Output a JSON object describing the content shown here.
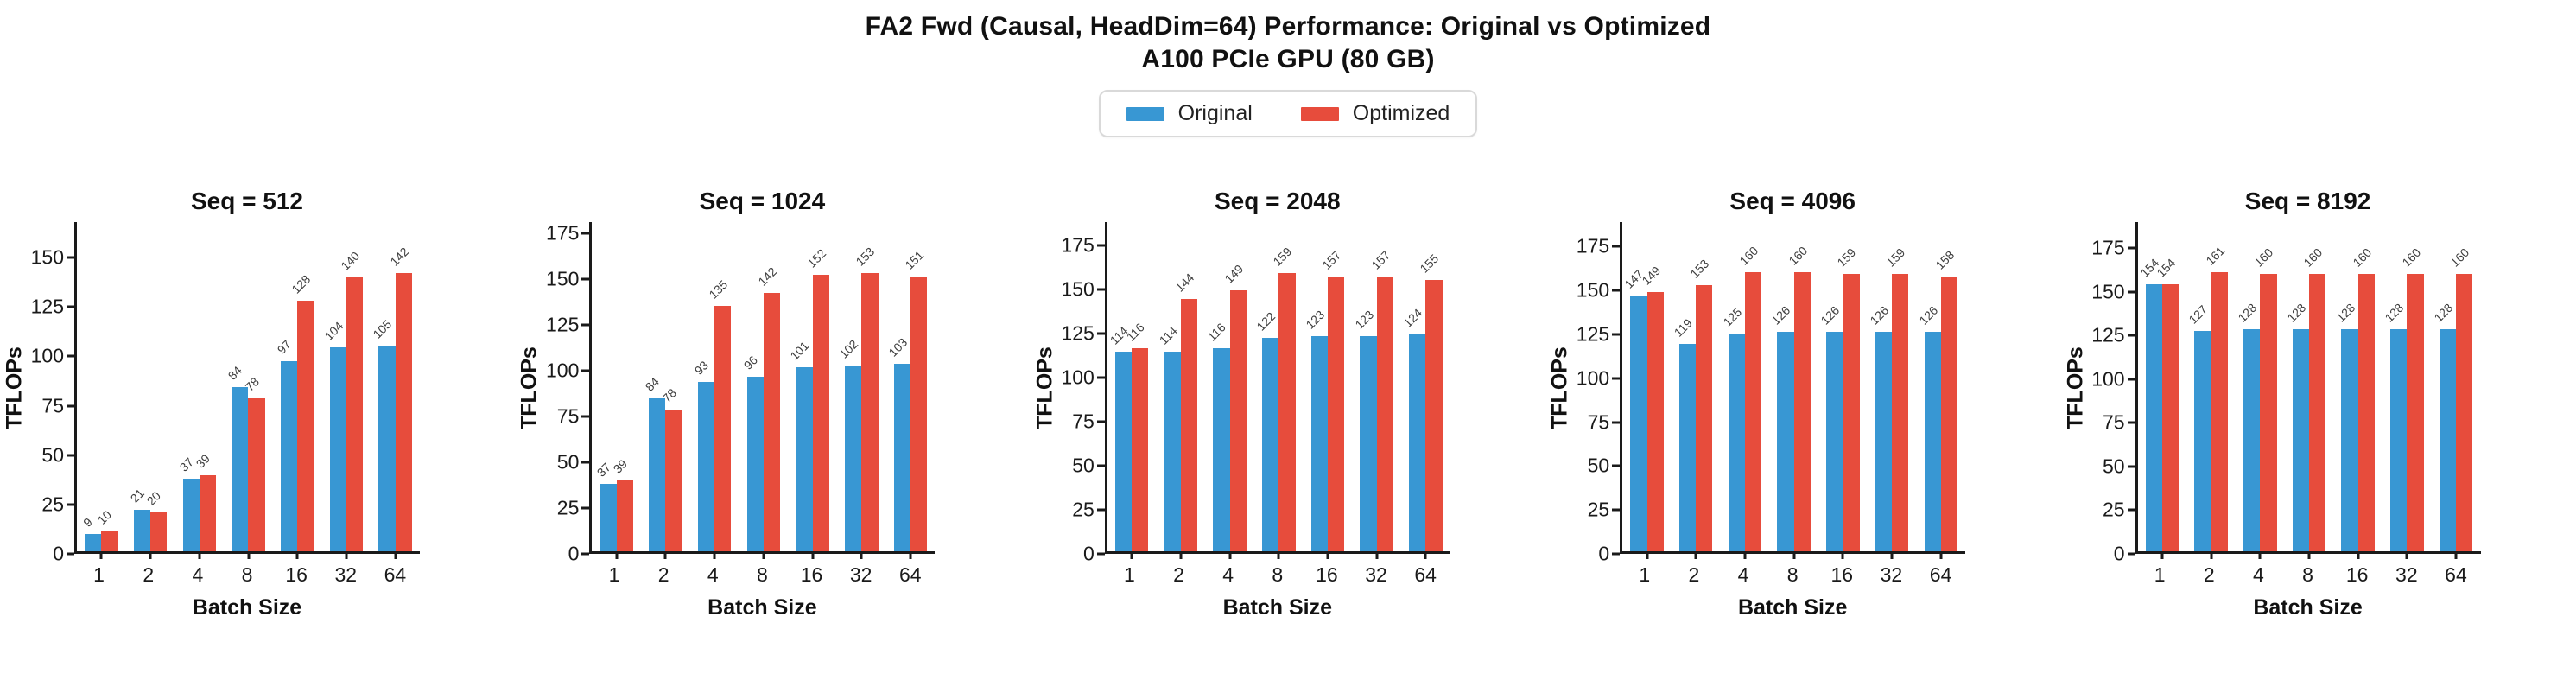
{
  "title": "FA2 Fwd (Causal, HeadDim=64) Performance: Original vs Optimized",
  "subtitle": "A100 PCIe GPU (80 GB)",
  "legend": [
    {
      "label": "Original",
      "color": "#3897d3"
    },
    {
      "label": "Optimized",
      "color": "#e74c3c"
    }
  ],
  "colors": {
    "axis": "#1a1a1a",
    "bar_label": "#3d3d3d",
    "legend_border": "#d9d9d9"
  },
  "chart_data": [
    {
      "type": "bar",
      "title": "Seq = 512",
      "xlabel": "Batch Size",
      "ylabel": "TFLOPs",
      "categories": [
        "1",
        "2",
        "4",
        "8",
        "16",
        "32",
        "64"
      ],
      "yticks": [
        0,
        25,
        50,
        75,
        100,
        125,
        150
      ],
      "ylim": [
        0,
        168
      ],
      "grid": false,
      "legend_position": "top-center",
      "series": [
        {
          "name": "Original",
          "color": "#3897d3",
          "values": [
            9,
            21,
            37,
            84,
            97,
            104,
            105
          ]
        },
        {
          "name": "Optimized",
          "color": "#e74c3c",
          "values": [
            10,
            20,
            39,
            78,
            128,
            140,
            142
          ]
        }
      ]
    },
    {
      "type": "bar",
      "title": "Seq = 1024",
      "xlabel": "Batch Size",
      "ylabel": "TFLOPs",
      "categories": [
        "1",
        "2",
        "4",
        "8",
        "16",
        "32",
        "64"
      ],
      "yticks": [
        0,
        25,
        50,
        75,
        100,
        125,
        150,
        175
      ],
      "ylim": [
        0,
        181
      ],
      "grid": false,
      "legend_position": "top-center",
      "series": [
        {
          "name": "Original",
          "color": "#3897d3",
          "values": [
            37,
            84,
            93,
            96,
            101,
            102,
            103
          ]
        },
        {
          "name": "Optimized",
          "color": "#e74c3c",
          "values": [
            39,
            78,
            135,
            142,
            152,
            153,
            151
          ]
        }
      ]
    },
    {
      "type": "bar",
      "title": "Seq = 2048",
      "xlabel": "Batch Size",
      "ylabel": "TFLOPs",
      "categories": [
        "1",
        "2",
        "4",
        "8",
        "16",
        "32",
        "64"
      ],
      "yticks": [
        0,
        25,
        50,
        75,
        100,
        125,
        150,
        175
      ],
      "ylim": [
        0,
        188
      ],
      "grid": false,
      "legend_position": "top-center",
      "series": [
        {
          "name": "Original",
          "color": "#3897d3",
          "values": [
            114,
            114,
            116,
            122,
            123,
            123,
            124
          ]
        },
        {
          "name": "Optimized",
          "color": "#e74c3c",
          "values": [
            116,
            144,
            149,
            159,
            157,
            157,
            155
          ]
        }
      ]
    },
    {
      "type": "bar",
      "title": "Seq = 4096",
      "xlabel": "Batch Size",
      "ylabel": "TFLOPs",
      "categories": [
        "1",
        "2",
        "4",
        "8",
        "16",
        "32",
        "64"
      ],
      "yticks": [
        0,
        25,
        50,
        75,
        100,
        125,
        150,
        175
      ],
      "ylim": [
        0,
        189
      ],
      "grid": false,
      "legend_position": "top-center",
      "series": [
        {
          "name": "Original",
          "color": "#3897d3",
          "values": [
            147,
            119,
            125,
            126,
            126,
            126,
            126
          ]
        },
        {
          "name": "Optimized",
          "color": "#e74c3c",
          "values": [
            149,
            153,
            160,
            160,
            159,
            159,
            158
          ]
        }
      ]
    },
    {
      "type": "bar",
      "title": "Seq = 8192",
      "xlabel": "Batch Size",
      "ylabel": "TFLOPs",
      "categories": [
        "1",
        "2",
        "4",
        "8",
        "16",
        "32",
        "64"
      ],
      "yticks": [
        0,
        25,
        50,
        75,
        100,
        125,
        150,
        175
      ],
      "ylim": [
        0,
        190
      ],
      "grid": false,
      "legend_position": "top-center",
      "series": [
        {
          "name": "Original",
          "color": "#3897d3",
          "values": [
            154,
            127,
            128,
            128,
            128,
            128,
            128
          ]
        },
        {
          "name": "Optimized",
          "color": "#e74c3c",
          "values": [
            154,
            161,
            160,
            160,
            160,
            160,
            160
          ]
        }
      ]
    }
  ]
}
